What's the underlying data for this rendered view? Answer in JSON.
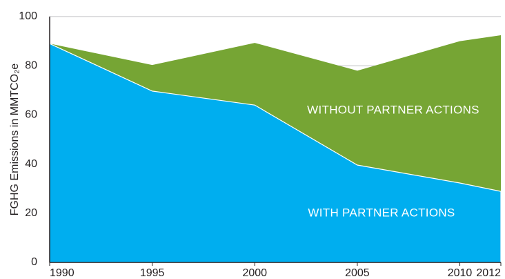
{
  "chart_data": {
    "type": "area",
    "ylabel": "FGHG Emissions in MMTCO₂e",
    "x": [
      1990,
      1995,
      2000,
      2005,
      2010,
      2012
    ],
    "xlim": [
      1990,
      2012
    ],
    "xticks": [
      1990,
      1995,
      2000,
      2005,
      2010,
      2012
    ],
    "ylim": [
      0,
      100
    ],
    "yticks": [
      0,
      20,
      40,
      60,
      80,
      100
    ],
    "grid": true,
    "series": [
      {
        "name": "WITHOUT PARTNER ACTIONS",
        "color": "#76a534",
        "values": [
          89,
          80.3,
          89.3,
          78,
          90,
          92.4
        ]
      },
      {
        "name": "WITH PARTNER ACTIONS",
        "color": "#00aeef",
        "values": [
          89,
          69.7,
          64,
          39.6,
          32.3,
          28.9
        ]
      }
    ]
  }
}
